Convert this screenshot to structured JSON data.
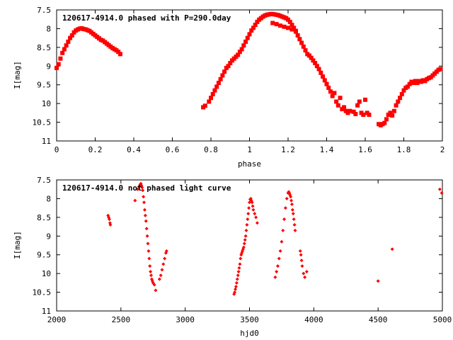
{
  "chart_data": [
    {
      "type": "scatter",
      "title": "120617-4914.0 phased with P=290.0day",
      "xlabel": "phase",
      "ylabel": "I[mag]",
      "xlim": [
        0,
        2
      ],
      "ylim": [
        7.5,
        11
      ],
      "y_inverted": true,
      "grid": false,
      "marker_color": "#ff0000",
      "marker": "filled-square",
      "xticks": [
        "0",
        "0.2",
        "0.4",
        "0.6",
        "0.8",
        "1",
        "1.2",
        "1.4",
        "1.6",
        "1.8",
        "2"
      ],
      "yticks": [
        "7.5",
        "8",
        "8.5",
        "9",
        "9.5",
        "10",
        "10.5",
        "11"
      ],
      "series": [
        {
          "points": [
            [
              0.0,
              9.05
            ],
            [
              0.01,
              8.95
            ],
            [
              0.02,
              8.8
            ],
            [
              0.03,
              8.65
            ],
            [
              0.04,
              8.55
            ],
            [
              0.05,
              8.45
            ],
            [
              0.06,
              8.35
            ],
            [
              0.07,
              8.25
            ],
            [
              0.08,
              8.18
            ],
            [
              0.09,
              8.1
            ],
            [
              0.1,
              8.05
            ],
            [
              0.11,
              8.02
            ],
            [
              0.12,
              8.0
            ],
            [
              0.13,
              7.99
            ],
            [
              0.14,
              8.01
            ],
            [
              0.15,
              8.02
            ],
            [
              0.16,
              8.04
            ],
            [
              0.17,
              8.06
            ],
            [
              0.18,
              8.1
            ],
            [
              0.19,
              8.14
            ],
            [
              0.2,
              8.18
            ],
            [
              0.21,
              8.22
            ],
            [
              0.22,
              8.26
            ],
            [
              0.23,
              8.3
            ],
            [
              0.24,
              8.32
            ],
            [
              0.25,
              8.36
            ],
            [
              0.26,
              8.4
            ],
            [
              0.27,
              8.44
            ],
            [
              0.28,
              8.48
            ],
            [
              0.29,
              8.52
            ],
            [
              0.3,
              8.55
            ],
            [
              0.31,
              8.58
            ],
            [
              0.32,
              8.62
            ],
            [
              0.33,
              8.68
            ],
            [
              0.76,
              10.1
            ],
            [
              0.77,
              10.06
            ],
            [
              0.79,
              9.95
            ],
            [
              0.8,
              9.85
            ],
            [
              0.81,
              9.75
            ],
            [
              0.82,
              9.65
            ],
            [
              0.83,
              9.55
            ],
            [
              0.84,
              9.45
            ],
            [
              0.85,
              9.35
            ],
            [
              0.86,
              9.25
            ],
            [
              0.87,
              9.15
            ],
            [
              0.88,
              9.05
            ],
            [
              0.89,
              9.0
            ],
            [
              0.9,
              8.92
            ],
            [
              0.91,
              8.85
            ],
            [
              0.92,
              8.8
            ],
            [
              0.93,
              8.75
            ],
            [
              0.94,
              8.7
            ],
            [
              0.95,
              8.62
            ],
            [
              0.96,
              8.55
            ],
            [
              0.97,
              8.45
            ],
            [
              0.98,
              8.35
            ],
            [
              0.99,
              8.25
            ],
            [
              1.0,
              8.15
            ],
            [
              1.01,
              8.05
            ],
            [
              1.02,
              7.98
            ],
            [
              1.03,
              7.9
            ],
            [
              1.04,
              7.82
            ],
            [
              1.05,
              7.76
            ],
            [
              1.06,
              7.72
            ],
            [
              1.07,
              7.68
            ],
            [
              1.08,
              7.65
            ],
            [
              1.09,
              7.63
            ],
            [
              1.1,
              7.62
            ],
            [
              1.11,
              7.61
            ],
            [
              1.12,
              7.61
            ],
            [
              1.13,
              7.62
            ],
            [
              1.14,
              7.63
            ],
            [
              1.15,
              7.64
            ],
            [
              1.16,
              7.66
            ],
            [
              1.17,
              7.68
            ],
            [
              1.18,
              7.7
            ],
            [
              1.19,
              7.72
            ],
            [
              1.2,
              7.76
            ],
            [
              1.21,
              7.82
            ],
            [
              1.22,
              7.9
            ],
            [
              1.23,
              7.98
            ],
            [
              1.24,
              8.08
            ],
            [
              1.25,
              8.18
            ],
            [
              1.12,
              7.85
            ],
            [
              1.14,
              7.88
            ],
            [
              1.16,
              7.92
            ],
            [
              1.18,
              7.95
            ],
            [
              1.2,
              7.98
            ],
            [
              1.22,
              8.02
            ],
            [
              1.24,
              8.06
            ],
            [
              1.26,
              8.28
            ],
            [
              1.27,
              8.38
            ],
            [
              1.28,
              8.48
            ],
            [
              1.29,
              8.58
            ],
            [
              1.3,
              8.68
            ],
            [
              1.31,
              8.72
            ],
            [
              1.32,
              8.78
            ],
            [
              1.33,
              8.85
            ],
            [
              1.34,
              8.92
            ],
            [
              1.35,
              9.0
            ],
            [
              1.36,
              9.08
            ],
            [
              1.37,
              9.18
            ],
            [
              1.38,
              9.28
            ],
            [
              1.39,
              9.38
            ],
            [
              1.4,
              9.48
            ],
            [
              1.41,
              9.58
            ],
            [
              1.42,
              9.68
            ],
            [
              1.43,
              9.8
            ],
            [
              1.44,
              9.72
            ],
            [
              1.45,
              9.95
            ],
            [
              1.46,
              10.05
            ],
            [
              1.47,
              9.85
            ],
            [
              1.48,
              10.15
            ],
            [
              1.49,
              10.1
            ],
            [
              1.5,
              10.2
            ],
            [
              1.51,
              10.25
            ],
            [
              1.52,
              10.2
            ],
            [
              1.54,
              10.22
            ],
            [
              1.55,
              10.28
            ],
            [
              1.56,
              10.05
            ],
            [
              1.57,
              9.95
            ],
            [
              1.58,
              10.25
            ],
            [
              1.59,
              10.3
            ],
            [
              1.6,
              9.9
            ],
            [
              1.61,
              10.25
            ],
            [
              1.62,
              10.3
            ],
            [
              1.67,
              10.55
            ],
            [
              1.68,
              10.58
            ],
            [
              1.69,
              10.55
            ],
            [
              1.7,
              10.52
            ],
            [
              1.71,
              10.42
            ],
            [
              1.72,
              10.3
            ],
            [
              1.73,
              10.25
            ],
            [
              1.74,
              10.32
            ],
            [
              1.75,
              10.2
            ],
            [
              1.76,
              10.05
            ],
            [
              1.77,
              9.95
            ],
            [
              1.78,
              9.85
            ],
            [
              1.79,
              9.75
            ],
            [
              1.8,
              9.65
            ],
            [
              1.81,
              9.58
            ],
            [
              1.82,
              9.55
            ],
            [
              1.83,
              9.48
            ],
            [
              1.84,
              9.42
            ],
            [
              1.85,
              9.45
            ],
            [
              1.86,
              9.4
            ],
            [
              1.87,
              9.45
            ],
            [
              1.88,
              9.4
            ],
            [
              1.89,
              9.42
            ],
            [
              1.9,
              9.38
            ],
            [
              1.91,
              9.4
            ],
            [
              1.92,
              9.35
            ],
            [
              1.93,
              9.32
            ],
            [
              1.94,
              9.3
            ],
            [
              1.95,
              9.25
            ],
            [
              1.96,
              9.2
            ],
            [
              1.97,
              9.15
            ],
            [
              1.98,
              9.1
            ],
            [
              1.99,
              9.08
            ]
          ]
        }
      ]
    },
    {
      "type": "scatter",
      "title": "120617-4914.0 not phased light curve",
      "xlabel": "hjd0",
      "ylabel": "I[mag]",
      "xlim": [
        2000,
        5000
      ],
      "ylim": [
        7.5,
        11
      ],
      "y_inverted": true,
      "grid": false,
      "marker_color": "#ff0000",
      "marker": "small-diamond",
      "xticks": [
        "2000",
        "2500",
        "3000",
        "3500",
        "4000",
        "4500",
        "5000"
      ],
      "yticks": [
        "7.5",
        "8",
        "8.5",
        "9",
        "9.5",
        "10",
        "10.5",
        "11"
      ],
      "series": [
        {
          "points": [
            [
              2400,
              8.45
            ],
            [
              2405,
              8.5
            ],
            [
              2410,
              8.55
            ],
            [
              2415,
              8.65
            ],
            [
              2418,
              8.7
            ],
            [
              2610,
              8.05
            ],
            [
              2630,
              7.75
            ],
            [
              2640,
              7.68
            ],
            [
              2650,
              7.62
            ],
            [
              2655,
              7.6
            ],
            [
              2660,
              7.65
            ],
            [
              2665,
              7.7
            ],
            [
              2670,
              7.78
            ],
            [
              2675,
              7.95
            ],
            [
              2680,
              8.1
            ],
            [
              2685,
              8.3
            ],
            [
              2690,
              8.45
            ],
            [
              2695,
              8.6
            ],
            [
              2700,
              8.8
            ],
            [
              2705,
              9.0
            ],
            [
              2710,
              9.2
            ],
            [
              2715,
              9.4
            ],
            [
              2720,
              9.6
            ],
            [
              2725,
              9.8
            ],
            [
              2730,
              9.95
            ],
            [
              2735,
              10.05
            ],
            [
              2740,
              10.15
            ],
            [
              2745,
              10.2
            ],
            [
              2750,
              10.25
            ],
            [
              2760,
              10.3
            ],
            [
              2770,
              10.45
            ],
            [
              2800,
              10.15
            ],
            [
              2810,
              10.05
            ],
            [
              2820,
              9.9
            ],
            [
              2830,
              9.75
            ],
            [
              2840,
              9.6
            ],
            [
              2850,
              9.45
            ],
            [
              2855,
              9.4
            ],
            [
              3380,
              10.55
            ],
            [
              3385,
              10.5
            ],
            [
              3390,
              10.42
            ],
            [
              3395,
              10.35
            ],
            [
              3400,
              10.25
            ],
            [
              3405,
              10.15
            ],
            [
              3410,
              10.05
            ],
            [
              3415,
              9.95
            ],
            [
              3420,
              9.85
            ],
            [
              3425,
              9.75
            ],
            [
              3430,
              9.6
            ],
            [
              3435,
              9.5
            ],
            [
              3440,
              9.45
            ],
            [
              3445,
              9.4
            ],
            [
              3450,
              9.35
            ],
            [
              3455,
              9.3
            ],
            [
              3460,
              9.2
            ],
            [
              3465,
              9.1
            ],
            [
              3470,
              9.0
            ],
            [
              3475,
              8.85
            ],
            [
              3480,
              8.7
            ],
            [
              3485,
              8.55
            ],
            [
              3490,
              8.4
            ],
            [
              3495,
              8.25
            ],
            [
              3500,
              8.1
            ],
            [
              3505,
              8.02
            ],
            [
              3510,
              8.0
            ],
            [
              3515,
              8.05
            ],
            [
              3520,
              8.1
            ],
            [
              3525,
              8.2
            ],
            [
              3530,
              8.3
            ],
            [
              3540,
              8.4
            ],
            [
              3550,
              8.5
            ],
            [
              3560,
              8.65
            ],
            [
              3700,
              10.1
            ],
            [
              3710,
              9.95
            ],
            [
              3720,
              9.8
            ],
            [
              3730,
              9.6
            ],
            [
              3740,
              9.4
            ],
            [
              3750,
              9.15
            ],
            [
              3760,
              8.85
            ],
            [
              3770,
              8.55
            ],
            [
              3780,
              8.25
            ],
            [
              3790,
              8.0
            ],
            [
              3800,
              7.85
            ],
            [
              3805,
              7.82
            ],
            [
              3810,
              7.85
            ],
            [
              3815,
              7.9
            ],
            [
              3820,
              7.95
            ],
            [
              3825,
              8.05
            ],
            [
              3830,
              8.15
            ],
            [
              3835,
              8.3
            ],
            [
              3840,
              8.4
            ],
            [
              3845,
              8.55
            ],
            [
              3850,
              8.7
            ],
            [
              3855,
              8.85
            ],
            [
              3895,
              9.4
            ],
            [
              3900,
              9.5
            ],
            [
              3905,
              9.65
            ],
            [
              3910,
              9.8
            ],
            [
              3920,
              10.0
            ],
            [
              3930,
              10.1
            ],
            [
              3945,
              9.95
            ],
            [
              4500,
              10.2
            ],
            [
              4610,
              9.35
            ],
            [
              4980,
              7.75
            ],
            [
              4995,
              7.85
            ]
          ]
        }
      ]
    }
  ]
}
